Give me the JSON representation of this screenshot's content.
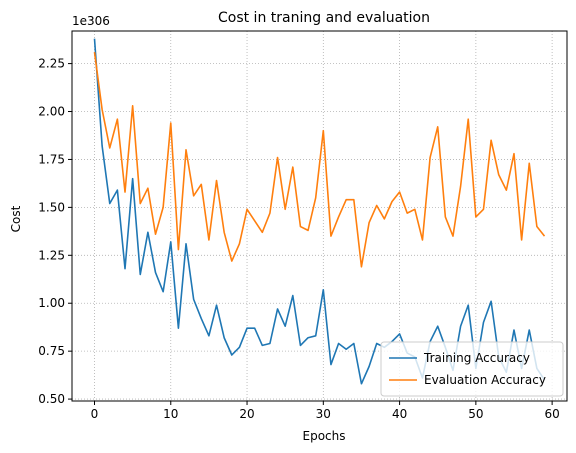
{
  "chart_data": {
    "type": "line",
    "title": "Cost in traning and evaluation",
    "xlabel": "Epochs",
    "ylabel": "Cost",
    "offset_label": "1e306",
    "xlim": [
      -2.95,
      61.95
    ],
    "ylim": [
      0.49,
      2.42
    ],
    "xticks": [
      0,
      10,
      20,
      30,
      40,
      50,
      60
    ],
    "yticks": [
      0.5,
      0.75,
      1.0,
      1.25,
      1.5,
      1.75,
      2.0,
      2.25
    ],
    "ytick_labels": [
      "0.50",
      "0.75",
      "1.00",
      "1.25",
      "1.50",
      "1.75",
      "2.00",
      "2.25"
    ],
    "grid": true,
    "grid_style": "dotted",
    "legend_position": "lower-right",
    "x": [
      0,
      1,
      2,
      3,
      4,
      5,
      6,
      7,
      8,
      9,
      10,
      11,
      12,
      13,
      14,
      15,
      16,
      17,
      18,
      19,
      20,
      21,
      22,
      23,
      24,
      25,
      26,
      27,
      28,
      29,
      30,
      31,
      32,
      33,
      34,
      35,
      36,
      37,
      38,
      39,
      40,
      41,
      42,
      43,
      44,
      45,
      46,
      47,
      48,
      49,
      50,
      51,
      52,
      53,
      54,
      55,
      56,
      57,
      58,
      59
    ],
    "series": [
      {
        "name": "Training Accuracy",
        "color": "#1f77b4",
        "values": [
          2.38,
          1.82,
          1.52,
          1.59,
          1.18,
          1.65,
          1.15,
          1.37,
          1.16,
          1.06,
          1.32,
          0.87,
          1.31,
          1.02,
          0.92,
          0.83,
          0.99,
          0.82,
          0.73,
          0.77,
          0.87,
          0.87,
          0.78,
          0.79,
          0.97,
          0.88,
          1.04,
          0.78,
          0.82,
          0.83,
          1.07,
          0.68,
          0.79,
          0.76,
          0.79,
          0.58,
          0.67,
          0.79,
          0.77,
          0.8,
          0.84,
          0.74,
          0.72,
          0.61,
          0.8,
          0.88,
          0.77,
          0.65,
          0.88,
          0.99,
          0.66,
          0.9,
          1.01,
          0.72,
          0.64,
          0.86,
          0.66,
          0.86,
          0.66,
          0.6
        ]
      },
      {
        "name": "Evaluation Accuracy",
        "color": "#ff7f0e",
        "values": [
          2.31,
          2.01,
          1.81,
          1.96,
          1.58,
          2.03,
          1.52,
          1.6,
          1.36,
          1.5,
          1.94,
          1.28,
          1.8,
          1.56,
          1.62,
          1.33,
          1.64,
          1.37,
          1.22,
          1.31,
          1.49,
          1.43,
          1.37,
          1.47,
          1.76,
          1.49,
          1.71,
          1.4,
          1.38,
          1.55,
          1.9,
          1.35,
          1.45,
          1.54,
          1.54,
          1.19,
          1.42,
          1.51,
          1.44,
          1.53,
          1.58,
          1.47,
          1.49,
          1.33,
          1.76,
          1.92,
          1.45,
          1.35,
          1.61,
          1.96,
          1.45,
          1.49,
          1.85,
          1.67,
          1.59,
          1.78,
          1.33,
          1.73,
          1.4,
          1.35
        ]
      }
    ]
  }
}
